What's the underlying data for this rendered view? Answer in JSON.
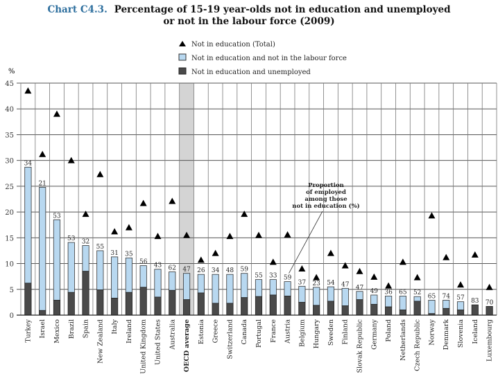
{
  "chart_data": {
    "type": "bar",
    "title_number": "Chart C4.3.",
    "title_line1": "Percentage of 15-19 year-olds not in education and unemployed",
    "title_line2": "or not in the labour force (2009)",
    "ylabel": "%",
    "ylim": [
      0,
      45
    ],
    "yticks": [
      0,
      5,
      10,
      15,
      20,
      25,
      30,
      35,
      40,
      45
    ],
    "grid": true,
    "legend_placement": "top-center",
    "legend": [
      "Not in education (Total)",
      "Not in education and not in the labour force",
      "Not in education and unemployed"
    ],
    "annotation": [
      "Proportion",
      "of employed",
      "among those",
      "not in education (%)"
    ],
    "colors": {
      "not_in_labour_force": "#b8d8f0",
      "unemployed": "#4a4a4a",
      "highlight": "#d4d4d4",
      "grid": "#555555",
      "title_accent": "#2e6f9e"
    },
    "highlight_category": "OECD average",
    "categories": [
      "Turkey",
      "Israel",
      "Mexico",
      "Brazil",
      "Spain",
      "New Zealand",
      "Italy",
      "Ireland",
      "United Kingdom",
      "United States",
      "Australia",
      "OECD average",
      "Estonia",
      "Greece",
      "Switzerland",
      "Canada",
      "Portugal",
      "France",
      "Austria",
      "Belgium",
      "Hungary",
      "Sweden",
      "Finland",
      "Slovak Republic",
      "Germany",
      "Poland",
      "Netherlands",
      "Czech Republic",
      "Norway",
      "Denmark",
      "Slovenia",
      "Iceland",
      "Luxembourg"
    ],
    "series": [
      {
        "name": "Not in education (Total)",
        "values": [
          43.5,
          31.2,
          39,
          30,
          19.6,
          27.3,
          16.2,
          17,
          21.7,
          15.3,
          22.1,
          15.5,
          10.7,
          12,
          15.3,
          19.6,
          15.5,
          10.3,
          15.6,
          9,
          7.3,
          12,
          9.6,
          8.5,
          7.4,
          5.7,
          10.3,
          7.3,
          19.3,
          11.2,
          5.9,
          11.7,
          5.4
        ]
      },
      {
        "name": "Not in education and not in the labour force",
        "values": [
          22.5,
          23.9,
          15.6,
          9.7,
          5,
          7.6,
          8,
          6.7,
          4.2,
          5.4,
          3.6,
          5.1,
          3.6,
          5.6,
          5.6,
          4.7,
          3.3,
          3,
          2.8,
          3.1,
          3.5,
          2.8,
          3.4,
          1.6,
          1.8,
          2.1,
          2.7,
          0.9,
          2.6,
          1.6,
          1.6,
          0,
          0
        ]
      },
      {
        "name": "Not in education and unemployed",
        "values": [
          6.2,
          0.9,
          2.9,
          4.4,
          8.5,
          4.9,
          3.3,
          4.4,
          5.4,
          3.5,
          4.8,
          3,
          4.3,
          2.3,
          2.3,
          3.4,
          3.6,
          3.9,
          3.7,
          2.5,
          1.9,
          2.7,
          1.8,
          3,
          2.1,
          1.6,
          1,
          2.7,
          0.3,
          1.3,
          1,
          2,
          1.7
        ]
      }
    ],
    "data_labels": [
      34,
      21,
      53,
      53,
      32,
      55,
      31,
      35,
      56,
      43,
      62,
      47,
      26,
      34,
      48,
      59,
      55,
      33,
      59,
      37,
      23,
      54,
      47,
      47,
      49,
      36,
      65,
      52,
      65,
      74,
      57,
      83,
      70
    ]
  }
}
